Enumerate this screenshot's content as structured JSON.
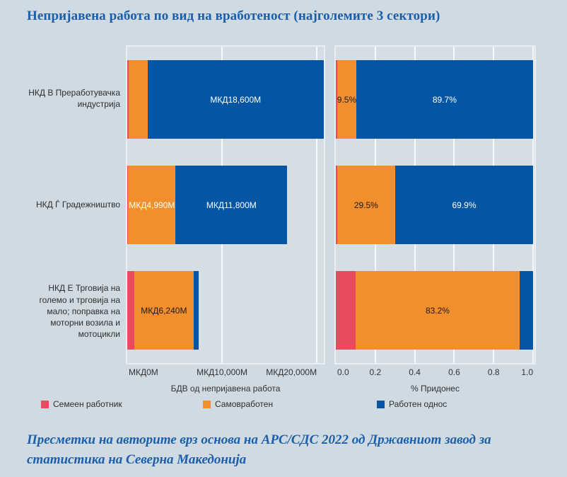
{
  "title": "Непријавена работа по вид на вработеност (најголемите 3 сектори)",
  "footer": "Пресметки на авторите врз основа на АРС/СДС 2022 од Државниот завод за статистика на Северна Македонија",
  "colors": {
    "page_bg": "#CFDAE2",
    "panel_bg": "#D6DEE5",
    "gridline": "#FFFFFF",
    "title_text": "#1B5EA9",
    "family_worker": "#E84A5E",
    "self_employed": "#F28E2C",
    "employment": "#0456A4"
  },
  "legend": {
    "items": [
      {
        "label": "Семеен работник",
        "color": "#E84A5E"
      },
      {
        "label": "Самовработен",
        "color": "#F28E2C"
      },
      {
        "label": "Работен однос",
        "color": "#0456A4"
      }
    ]
  },
  "chart_data": {
    "type": "bar",
    "orientation": "horizontal",
    "stacked": true,
    "grid": true,
    "legend_position": "bottom",
    "title": "Непријавена работа по вид на вработеност (најголемите 3 сектори)",
    "categories": [
      "НКД В Преработувачка индустрија",
      "НКД Ѓ Градежништво",
      "НКД Е Трговија на големо и трговија на мало; поправка на моторни возила и мотоцикли"
    ],
    "panels": [
      {
        "xlabel": "БДВ од непријавена работа",
        "xlim": [
          0,
          20740
        ],
        "ticks": [
          {
            "label": "МКД0М",
            "value": 0
          },
          {
            "label": "МКД10,000М",
            "value": 10000
          },
          {
            "label": "МКД20,000М",
            "value": 20000
          }
        ],
        "rows": [
          {
            "segments": [
              {
                "series": 0,
                "value": 166,
                "label": ""
              },
              {
                "series": 1,
                "value": 1970,
                "label": ""
              },
              {
                "series": 2,
                "value": 18600,
                "label": "МКД18,600М",
                "label_style": "light"
              }
            ]
          },
          {
            "segments": [
              {
                "series": 0,
                "value": 101,
                "label": ""
              },
              {
                "series": 1,
                "value": 4990,
                "label": "МКД4,990М",
                "label_style": "light"
              },
              {
                "series": 2,
                "value": 11800,
                "label": "МКД11,800М",
                "label_style": "light"
              }
            ]
          },
          {
            "segments": [
              {
                "series": 0,
                "value": 750,
                "label": ""
              },
              {
                "series": 1,
                "value": 6240,
                "label": "МКД6,240М",
                "label_style": "dark"
              },
              {
                "series": 2,
                "value": 510,
                "label": ""
              }
            ]
          }
        ]
      },
      {
        "xlabel": "% Придонес",
        "xlim": [
          0,
          1.007
        ],
        "ticks": [
          {
            "label": "0.0",
            "value": 0
          },
          {
            "label": "0.2",
            "value": 0.2
          },
          {
            "label": "0.4",
            "value": 0.4
          },
          {
            "label": "0.6",
            "value": 0.6
          },
          {
            "label": "0.8",
            "value": 0.8
          },
          {
            "label": "1.0",
            "value": 1.0
          }
        ],
        "rows": [
          {
            "segments": [
              {
                "series": 0,
                "value": 0.008,
                "label": ""
              },
              {
                "series": 1,
                "value": 0.095,
                "label": "9.5%",
                "label_style": "dark"
              },
              {
                "series": 2,
                "value": 0.897,
                "label": "89.7%",
                "label_style": "light"
              }
            ]
          },
          {
            "segments": [
              {
                "series": 0,
                "value": 0.006,
                "label": ""
              },
              {
                "series": 1,
                "value": 0.295,
                "label": "29.5%",
                "label_style": "dark"
              },
              {
                "series": 2,
                "value": 0.699,
                "label": "69.9%",
                "label_style": "light"
              }
            ]
          },
          {
            "segments": [
              {
                "series": 0,
                "value": 0.1,
                "label": ""
              },
              {
                "series": 1,
                "value": 0.832,
                "label": "83.2%",
                "label_style": "dark"
              },
              {
                "series": 2,
                "value": 0.068,
                "label": ""
              }
            ]
          }
        ]
      }
    ]
  }
}
